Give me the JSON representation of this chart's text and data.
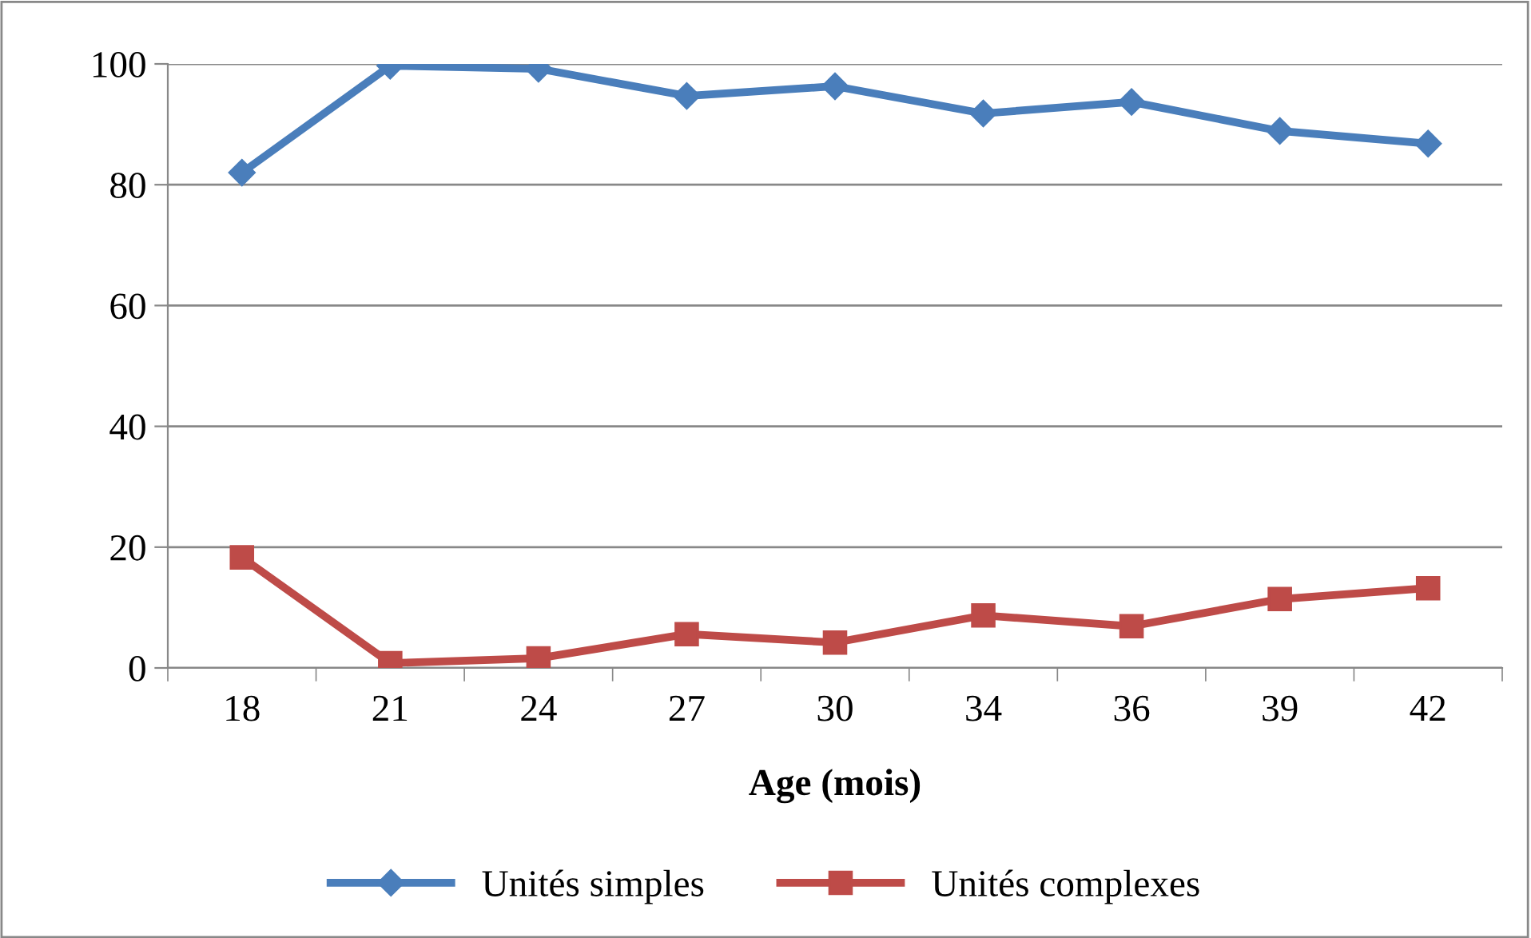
{
  "chart_data": {
    "type": "line",
    "xlabel": "Age (mois)",
    "categories": [
      "18",
      "21",
      "24",
      "27",
      "30",
      "34",
      "36",
      "39",
      "42"
    ],
    "series": [
      {
        "name": "Unités simples",
        "color": "#4a7ebb",
        "marker": "diamond",
        "values": [
          82,
          99.7,
          99.2,
          94.7,
          96.3,
          91.8,
          93.7,
          88.9,
          86.8
        ]
      },
      {
        "name": "Unités complexes",
        "color": "#be4b48",
        "marker": "square",
        "values": [
          18.3,
          0.8,
          1.6,
          5.6,
          4.2,
          8.7,
          6.9,
          11.4,
          13.2
        ]
      }
    ],
    "ylim": [
      0,
      100
    ],
    "yticks": [
      0,
      20,
      40,
      60,
      80,
      100
    ],
    "grid": "y",
    "legend": "bottom",
    "line_style": "solid"
  }
}
